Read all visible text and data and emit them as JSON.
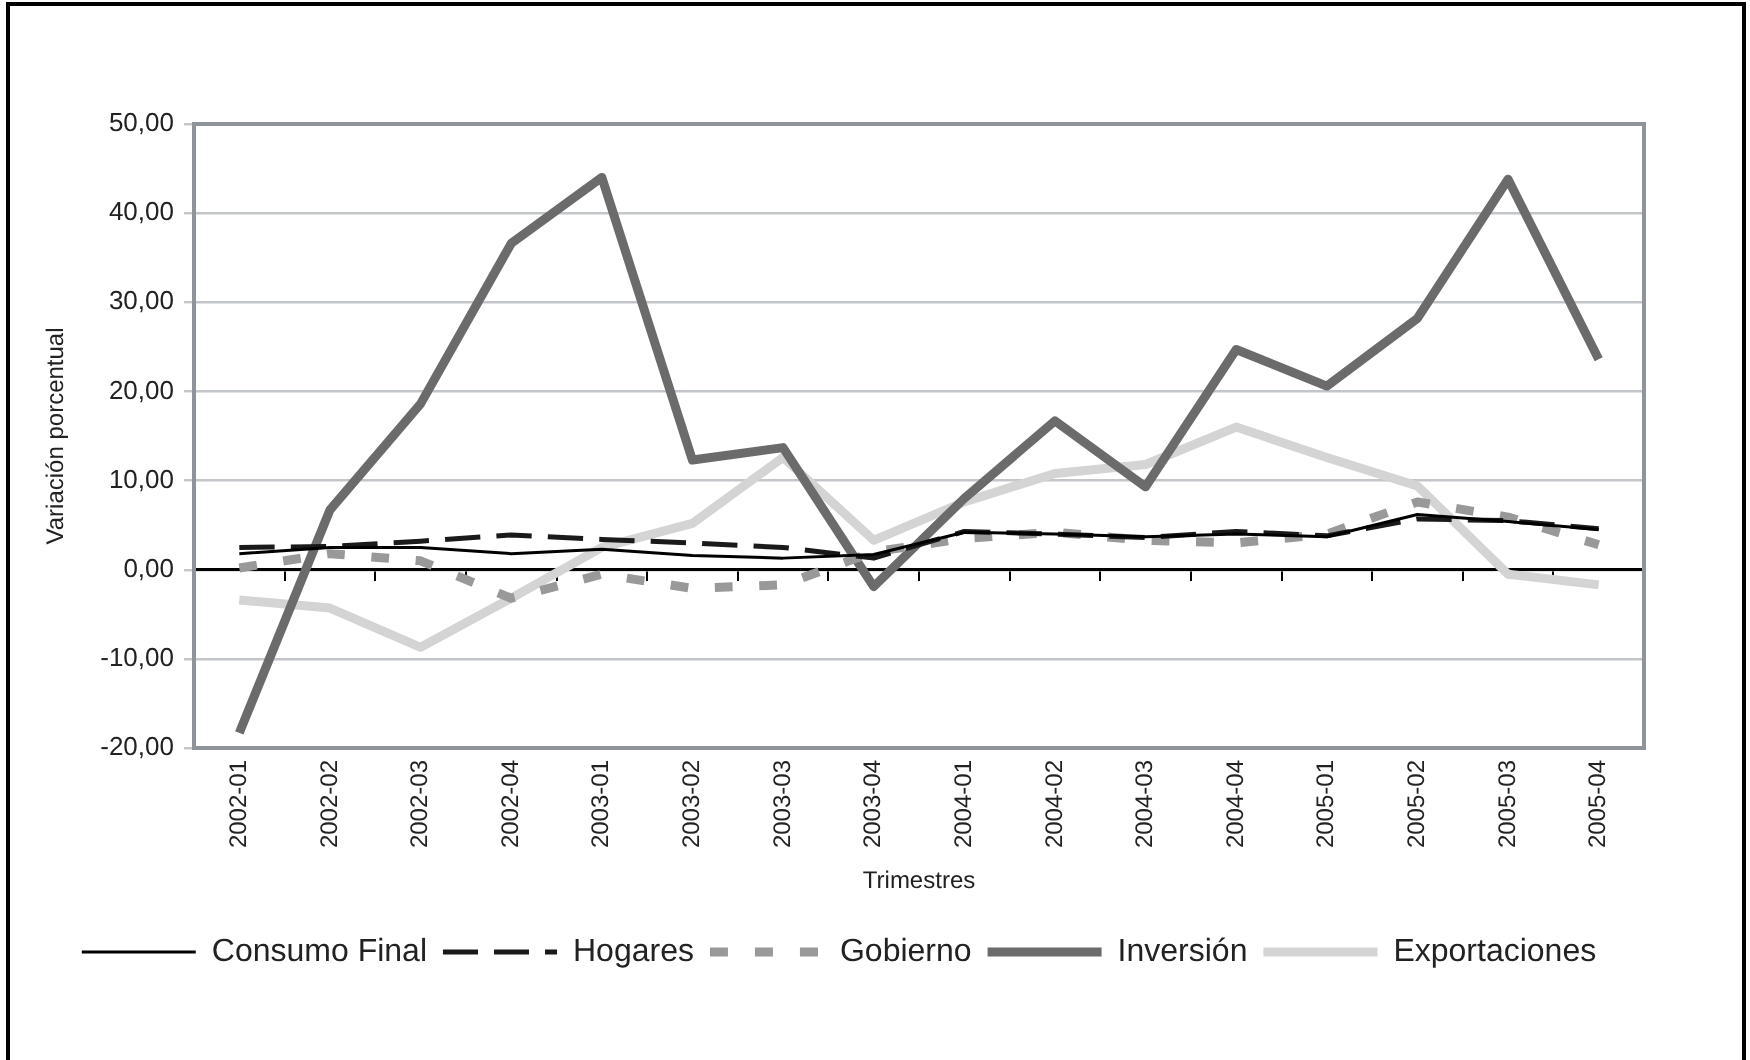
{
  "chart_data": {
    "type": "line",
    "xlabel": "Trimestres",
    "ylabel": "Variación porcentual",
    "categories": [
      "2002-01",
      "2002-02",
      "2002-03",
      "2002-04",
      "2003-01",
      "2003-02",
      "2003-03",
      "2003-04",
      "2004-01",
      "2004-02",
      "2004-03",
      "2004-04",
      "2005-01",
      "2005-02",
      "2005-03",
      "2005-04"
    ],
    "series": [
      {
        "name": "Consumo Final",
        "color": "#000000",
        "line_style": "solid",
        "values": [
          1.8,
          2.5,
          2.5,
          1.8,
          2.3,
          1.6,
          1.3,
          1.7,
          4.2,
          4.0,
          3.7,
          4.0,
          3.7,
          6.2,
          5.4,
          4.5
        ]
      },
      {
        "name": "Hogares",
        "color": "#1a1a1a",
        "line_style": "dashed",
        "values": [
          2.5,
          2.6,
          3.2,
          3.9,
          3.4,
          3.0,
          2.5,
          1.3,
          4.3,
          4.0,
          3.6,
          4.3,
          3.8,
          5.7,
          5.5,
          4.6
        ]
      },
      {
        "name": "Gobierno",
        "color": "#999999",
        "line_style": "dotted",
        "values": [
          0.2,
          1.8,
          1.0,
          -3.2,
          -0.5,
          -2.1,
          -1.7,
          2.0,
          3.5,
          4.2,
          3.3,
          3.0,
          4.0,
          7.6,
          5.9,
          2.8
        ]
      },
      {
        "name": "Inversión",
        "color": "#6b6b6b",
        "line_style": "solid",
        "values": [
          -18.3,
          6.7,
          18.6,
          36.6,
          44.0,
          12.3,
          13.7,
          -1.9,
          8.0,
          16.7,
          9.3,
          24.7,
          20.6,
          28.2,
          43.8,
          23.6
        ]
      },
      {
        "name": "Exportaciones",
        "color": "#d4d4d4",
        "line_style": "solid",
        "values": [
          -3.4,
          -4.3,
          -8.7,
          -3.2,
          2.5,
          5.2,
          12.6,
          3.3,
          7.6,
          10.8,
          11.8,
          16.0,
          12.6,
          9.4,
          -0.5,
          -1.7
        ]
      }
    ],
    "ylim": [
      -20,
      50
    ],
    "yticks": [
      {
        "value": -20,
        "label": "-20,00"
      },
      {
        "value": -10,
        "label": "-10,00"
      },
      {
        "value": 0,
        "label": "0,00"
      },
      {
        "value": 10,
        "label": "10,00"
      },
      {
        "value": 20,
        "label": "20,00"
      },
      {
        "value": 30,
        "label": "30,00"
      },
      {
        "value": 40,
        "label": "40,00"
      },
      {
        "value": 50,
        "label": "50,00"
      }
    ],
    "grid": "y",
    "legend": "bottom",
    "marker": "none"
  }
}
